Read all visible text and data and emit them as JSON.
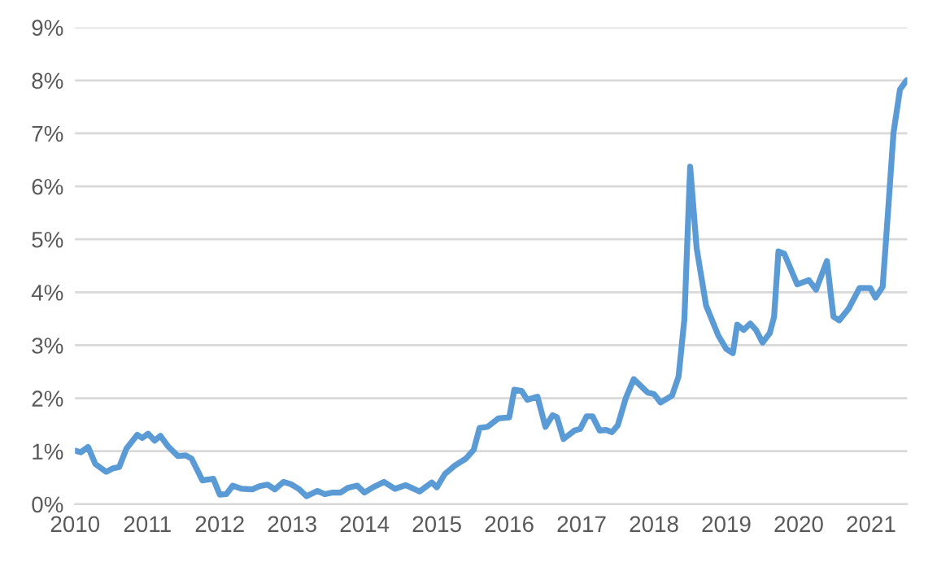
{
  "chart_data": {
    "type": "line",
    "x": [
      2010.0,
      2010.08,
      2010.18,
      2010.28,
      2010.43,
      2010.53,
      2010.61,
      2010.71,
      2010.86,
      2010.93,
      2011.01,
      2011.1,
      2011.18,
      2011.28,
      2011.42,
      2011.53,
      2011.61,
      2011.76,
      2011.91,
      2012.0,
      2012.09,
      2012.18,
      2012.3,
      2012.45,
      2012.55,
      2012.66,
      2012.76,
      2012.88,
      2012.98,
      2013.09,
      2013.2,
      2013.35,
      2013.45,
      2013.56,
      2013.67,
      2013.77,
      2013.9,
      2014.0,
      2014.12,
      2014.27,
      2014.42,
      2014.57,
      2014.76,
      2014.93,
      2015.0,
      2015.11,
      2015.25,
      2015.4,
      2015.51,
      2015.59,
      2015.7,
      2015.85,
      2016.0,
      2016.07,
      2016.17,
      2016.25,
      2016.39,
      2016.5,
      2016.6,
      2016.66,
      2016.75,
      2016.9,
      2016.98,
      2017.07,
      2017.15,
      2017.25,
      2017.34,
      2017.42,
      2017.5,
      2017.61,
      2017.72,
      2017.91,
      2018.0,
      2018.09,
      2018.25,
      2018.34,
      2018.42,
      2018.5,
      2018.59,
      2018.72,
      2018.89,
      2019.0,
      2019.09,
      2019.15,
      2019.24,
      2019.33,
      2019.41,
      2019.5,
      2019.6,
      2019.66,
      2019.72,
      2019.8,
      2019.98,
      2020.14,
      2020.24,
      2020.39,
      2020.48,
      2020.56,
      2020.69,
      2020.84,
      2020.99,
      2021.06,
      2021.16,
      2021.24,
      2021.31,
      2021.4,
      2021.49
    ],
    "series": [
      {
        "color": "#5b9bd5",
        "values": [
          1.01,
          0.98,
          1.08,
          0.76,
          0.61,
          0.68,
          0.7,
          1.05,
          1.31,
          1.25,
          1.33,
          1.2,
          1.29,
          1.1,
          0.91,
          0.92,
          0.86,
          0.45,
          0.48,
          0.18,
          0.19,
          0.35,
          0.29,
          0.28,
          0.34,
          0.37,
          0.28,
          0.42,
          0.38,
          0.29,
          0.15,
          0.25,
          0.19,
          0.22,
          0.22,
          0.31,
          0.35,
          0.22,
          0.32,
          0.42,
          0.29,
          0.36,
          0.24,
          0.41,
          0.32,
          0.57,
          0.73,
          0.86,
          1.03,
          1.44,
          1.46,
          1.62,
          1.64,
          2.16,
          2.14,
          1.97,
          2.03,
          1.46,
          1.68,
          1.64,
          1.23,
          1.39,
          1.42,
          1.66,
          1.66,
          1.39,
          1.4,
          1.36,
          1.49,
          2.0,
          2.36,
          2.11,
          2.08,
          1.92,
          2.05,
          2.41,
          3.49,
          6.37,
          4.83,
          3.75,
          3.18,
          2.93,
          2.85,
          3.39,
          3.29,
          3.41,
          3.29,
          3.05,
          3.23,
          3.54,
          4.77,
          4.73,
          4.15,
          4.23,
          4.05,
          4.59,
          3.54,
          3.47,
          3.69,
          4.08,
          4.08,
          3.9,
          4.1,
          5.63,
          7.01,
          7.83,
          8.0
        ]
      }
    ],
    "xlim": [
      2010,
      2021.5
    ],
    "xticks": [
      2010,
      2011,
      2012,
      2013,
      2014,
      2015,
      2016,
      2017,
      2018,
      2019,
      2020,
      2021
    ],
    "ylim": [
      0,
      9
    ],
    "yticks": [
      {
        "value": 0,
        "label": "0%"
      },
      {
        "value": 1,
        "label": "1%"
      },
      {
        "value": 2,
        "label": "2%"
      },
      {
        "value": 3,
        "label": "3%"
      },
      {
        "value": 4,
        "label": "4%"
      },
      {
        "value": 5,
        "label": "5%"
      },
      {
        "value": 6,
        "label": "6%"
      },
      {
        "value": 7,
        "label": "7%"
      },
      {
        "value": 8,
        "label": "8%"
      },
      {
        "value": 9,
        "label": "9%"
      }
    ],
    "grid": "y",
    "marker": "none",
    "line_style": "solid"
  }
}
